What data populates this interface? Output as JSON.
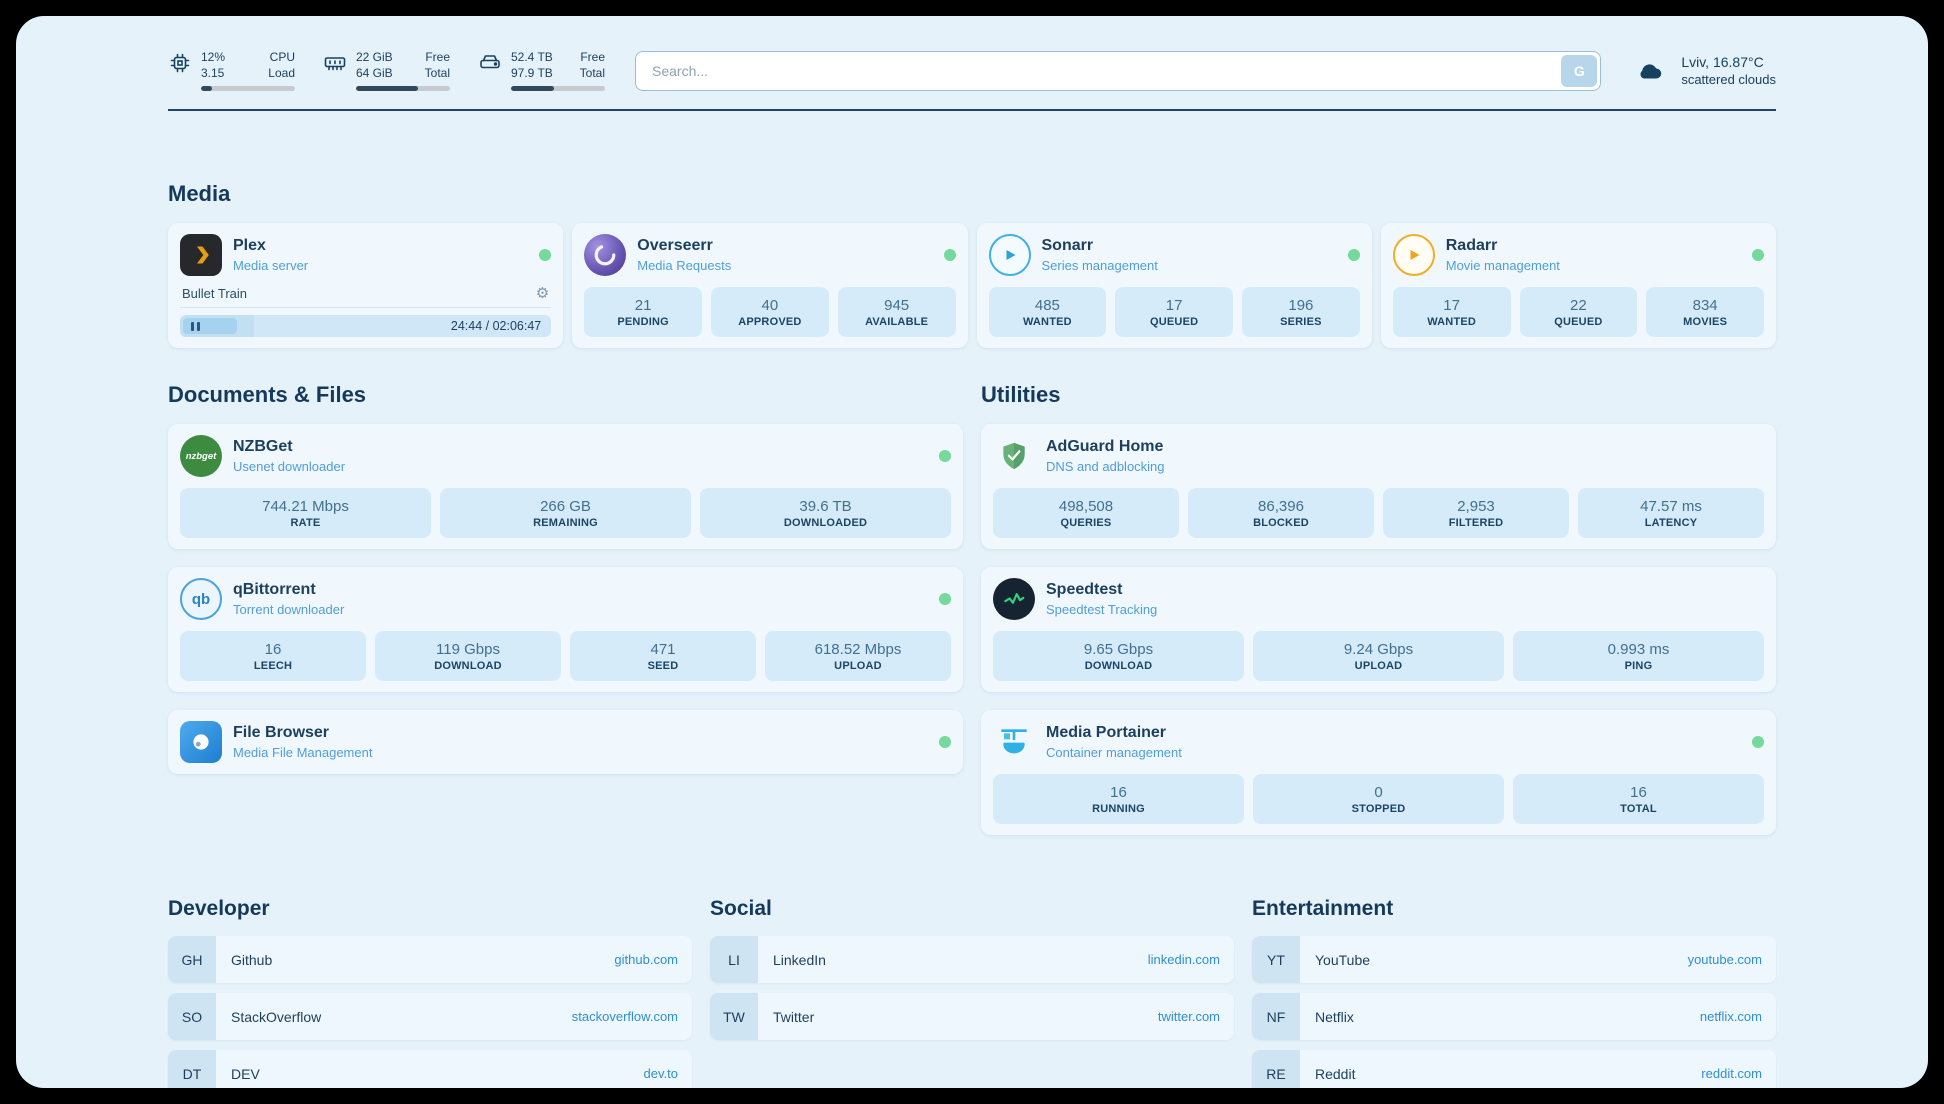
{
  "header": {
    "metrics": [
      {
        "icon": "cpu-icon",
        "values": [
          "12%",
          "3.15"
        ],
        "labels": [
          "CPU",
          "Load"
        ],
        "progress_pct": 12
      },
      {
        "icon": "ram-icon",
        "values": [
          "22 GiB",
          "64 GiB"
        ],
        "labels": [
          "Free",
          "Total"
        ],
        "progress_pct": 66
      },
      {
        "icon": "disk-icon",
        "values": [
          "52.4 TB",
          "97.9 TB"
        ],
        "labels": [
          "Free",
          "Total"
        ],
        "progress_pct": 46
      }
    ],
    "search": {
      "placeholder": "Search...",
      "button_label": "G"
    },
    "weather": {
      "location": "Lviv, 16.87°C",
      "condition": "scattered clouds"
    }
  },
  "media": {
    "title": "Media",
    "cards": [
      {
        "name": "Plex",
        "subtitle": "Media server",
        "online": true,
        "player": {
          "title": "Bullet Train",
          "time": "24:44 / 02:06:47",
          "progress_pct": 20
        }
      },
      {
        "name": "Overseerr",
        "subtitle": "Media Requests",
        "online": true,
        "stats": [
          {
            "value": "21",
            "label": "PENDING"
          },
          {
            "value": "40",
            "label": "APPROVED"
          },
          {
            "value": "945",
            "label": "AVAILABLE"
          }
        ]
      },
      {
        "name": "Sonarr",
        "subtitle": "Series management",
        "online": true,
        "stats": [
          {
            "value": "485",
            "label": "WANTED"
          },
          {
            "value": "17",
            "label": "QUEUED"
          },
          {
            "value": "196",
            "label": "SERIES"
          }
        ]
      },
      {
        "name": "Radarr",
        "subtitle": "Movie management",
        "online": true,
        "stats": [
          {
            "value": "17",
            "label": "WANTED"
          },
          {
            "value": "22",
            "label": "QUEUED"
          },
          {
            "value": "834",
            "label": "MOVIES"
          }
        ]
      }
    ]
  },
  "documents": {
    "title": "Documents & Files",
    "cards": [
      {
        "name": "NZBGet",
        "subtitle": "Usenet downloader",
        "online": true,
        "stats": [
          {
            "value": "744.21 Mbps",
            "label": "RATE"
          },
          {
            "value": "266 GB",
            "label": "REMAINING"
          },
          {
            "value": "39.6 TB",
            "label": "DOWNLOADED"
          }
        ]
      },
      {
        "name": "qBittorrent",
        "subtitle": "Torrent downloader",
        "online": true,
        "stats": [
          {
            "value": "16",
            "label": "LEECH"
          },
          {
            "value": "119 Gbps",
            "label": "DOWNLOAD"
          },
          {
            "value": "471",
            "label": "SEED"
          },
          {
            "value": "618.52 Mbps",
            "label": "UPLOAD"
          }
        ]
      },
      {
        "name": "File Browser",
        "subtitle": "Media File Management",
        "online": true,
        "stats": []
      }
    ]
  },
  "utilities": {
    "title": "Utilities",
    "cards": [
      {
        "name": "AdGuard Home",
        "subtitle": "DNS and adblocking",
        "online": false,
        "stats": [
          {
            "value": "498,508",
            "label": "QUERIES"
          },
          {
            "value": "86,396",
            "label": "BLOCKED"
          },
          {
            "value": "2,953",
            "label": "FILTERED"
          },
          {
            "value": "47.57 ms",
            "label": "LATENCY"
          }
        ]
      },
      {
        "name": "Speedtest",
        "subtitle": "Speedtest Tracking",
        "online": false,
        "stats": [
          {
            "value": "9.65 Gbps",
            "label": "DOWNLOAD"
          },
          {
            "value": "9.24 Gbps",
            "label": "UPLOAD"
          },
          {
            "value": "0.993 ms",
            "label": "PING"
          }
        ]
      },
      {
        "name": "Media Portainer",
        "subtitle": "Container management",
        "online": true,
        "stats": [
          {
            "value": "16",
            "label": "RUNNING"
          },
          {
            "value": "0",
            "label": "STOPPED"
          },
          {
            "value": "16",
            "label": "TOTAL"
          }
        ]
      }
    ]
  },
  "bookmarks": [
    {
      "title": "Developer",
      "items": [
        {
          "abbr": "GH",
          "name": "Github",
          "url": "github.com"
        },
        {
          "abbr": "SO",
          "name": "StackOverflow",
          "url": "stackoverflow.com"
        },
        {
          "abbr": "DT",
          "name": "DEV",
          "url": "dev.to"
        }
      ]
    },
    {
      "title": "Social",
      "items": [
        {
          "abbr": "LI",
          "name": "LinkedIn",
          "url": "linkedin.com"
        },
        {
          "abbr": "TW",
          "name": "Twitter",
          "url": "twitter.com"
        }
      ]
    },
    {
      "title": "Entertainment",
      "items": [
        {
          "abbr": "YT",
          "name": "YouTube",
          "url": "youtube.com"
        },
        {
          "abbr": "NF",
          "name": "Netflix",
          "url": "netflix.com"
        },
        {
          "abbr": "RE",
          "name": "Reddit",
          "url": "reddit.com"
        }
      ]
    }
  ],
  "icons": {
    "gear_glyph": "⚙",
    "nzbget_label": "nzbget",
    "qbittorrent_label": "qb"
  },
  "colors": {
    "accent_link": "#2e8fd4",
    "status_online": "#74d99a",
    "panel_bg": "#e6f2fa",
    "card_bg": "#f0f8fe",
    "stat_bg": "#d5ebf9",
    "heading_text": "#14395a",
    "plex_amber": "#e5a00d",
    "sonarr_blue": "#2aa3d8",
    "radarr_amber": "#f0a51f",
    "nzbget_green": "#3d8b40",
    "adguard_green": "#67b279",
    "speedtest_green": "#35d07f",
    "portainer_blue": "#2fb1e3"
  }
}
